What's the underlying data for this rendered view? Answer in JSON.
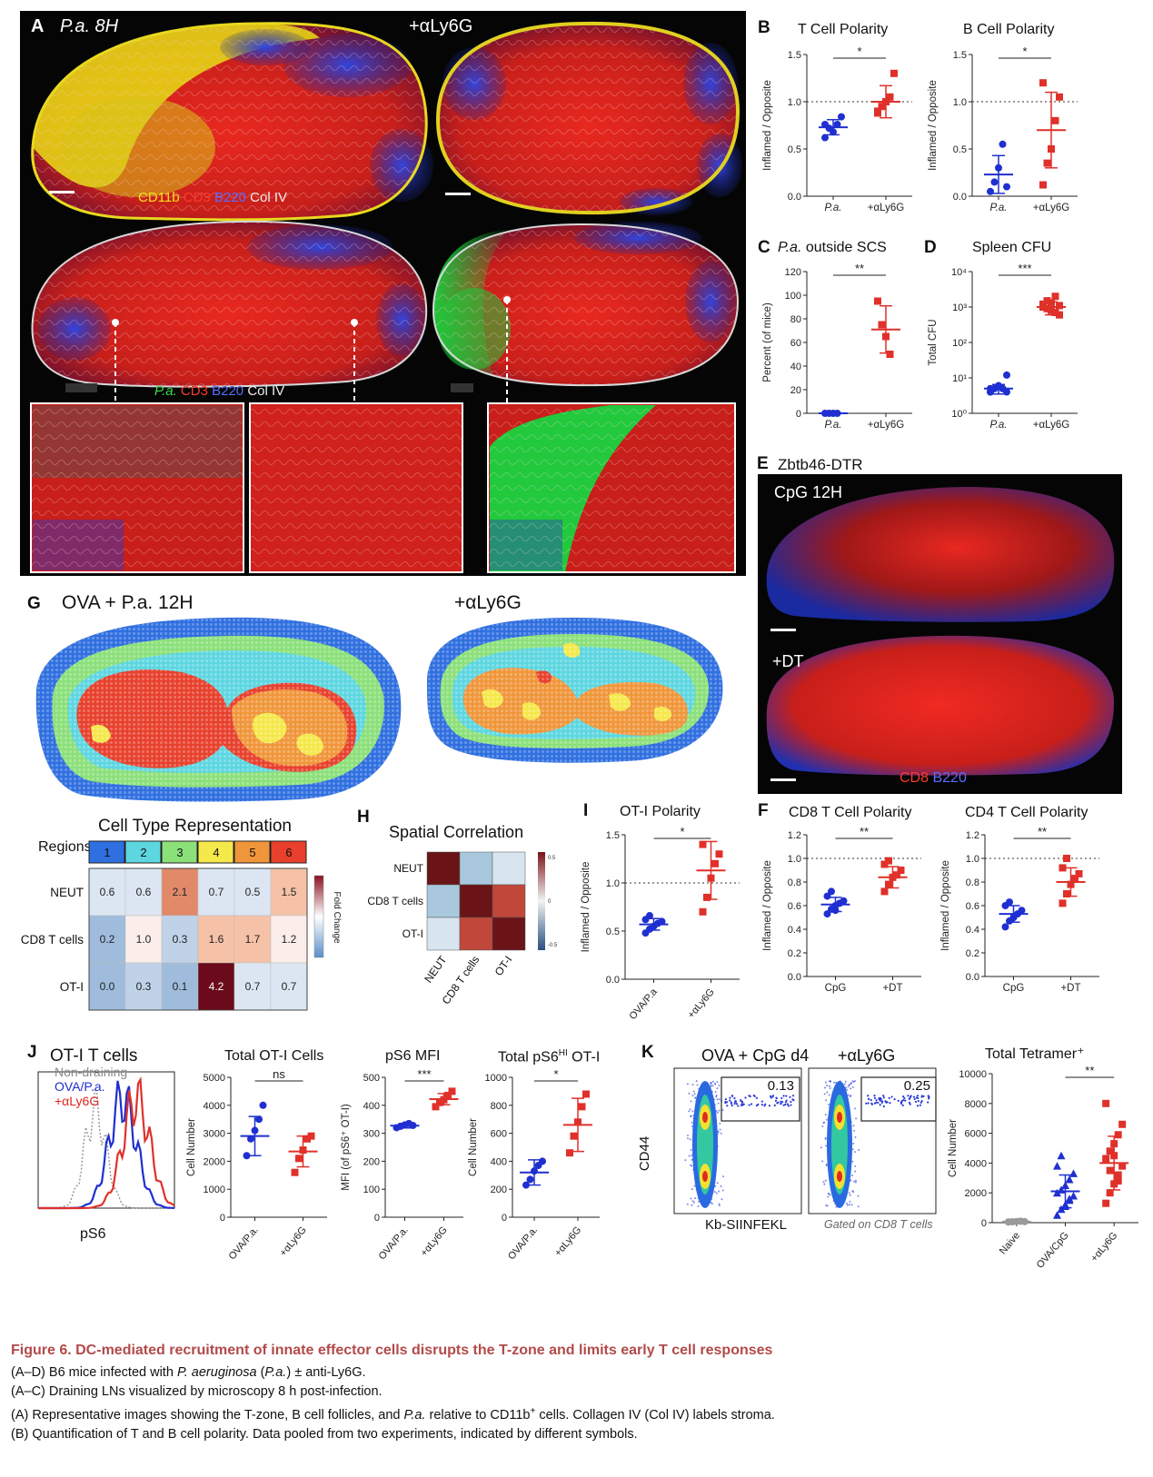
{
  "panel_letters": {
    "A": "A",
    "B": "B",
    "C": "C",
    "D": "D",
    "E": "E",
    "F": "F",
    "G": "G",
    "H": "H",
    "I": "I",
    "J": "J",
    "K": "K"
  },
  "panelA": {
    "title_left": "P.a. 8H",
    "title_right": "+αLy6G",
    "legend_top": [
      "CD11b",
      "CD3",
      "B220",
      "Col IV"
    ],
    "legend_bottom": [
      "P.a.",
      "CD3",
      "B220",
      "Col IV"
    ],
    "colors": {
      "yellow": "#f2e21a",
      "red": "#e0241f",
      "blue": "#2a38c8",
      "white": "#e8e8e8",
      "green": "#2ecc3a"
    }
  },
  "panelB_T": {
    "title": "T Cell Polarity",
    "ylabel": "Inflamed / Opposite",
    "sig": "*",
    "categories": [
      "P.a.",
      "+αLy6G"
    ]
  },
  "panelB_B": {
    "title": "B Cell Polarity",
    "ylabel": "Inflamed / Opposite",
    "sig": "*",
    "categories": [
      "P.a.",
      "+αLy6G"
    ]
  },
  "panelC": {
    "title_italic": "P.a.",
    "title_rest": " outside SCS",
    "ylabel": "Percent (of mice)",
    "sig": "**",
    "categories": [
      "P.a.",
      "+αLy6G"
    ]
  },
  "panelD": {
    "title": "Spleen CFU",
    "ylabel": "Total CFU",
    "sig": "***",
    "categories": [
      "P.a.",
      "+αLy6G"
    ]
  },
  "panelE": {
    "title": "Zbtb46-DTR",
    "label_top": "CpG 12H",
    "label_bottom": "+DT",
    "legend": [
      "CD8",
      "B220"
    ]
  },
  "panelF_CD8": {
    "title": "CD8 T Cell Polarity",
    "ylabel": "Inflamed / Opposite",
    "sig": "**",
    "categories": [
      "CpG",
      "+DT"
    ]
  },
  "panelF_CD4": {
    "title": "CD4 T Cell Polarity",
    "ylabel": "Inflamed / Opposite",
    "sig": "**",
    "categories": [
      "CpG",
      "+DT"
    ]
  },
  "panelG": {
    "title_left": "OVA + P.a. 12H",
    "title_right": "+αLy6G",
    "region_colors": [
      "#2f6fe0",
      "#5dd6e0",
      "#8be07a",
      "#f5e84a",
      "#f0963a",
      "#e8402c"
    ]
  },
  "heatmap": {
    "title": "Cell Type Representation",
    "regions_label": "Regions",
    "regions": [
      "1",
      "2",
      "3",
      "4",
      "5",
      "6"
    ],
    "rows": [
      {
        "name": "NEUT",
        "values": [
          0.6,
          0.6,
          2.1,
          0.7,
          0.5,
          1.5
        ]
      },
      {
        "name": "CD8 T cells",
        "values": [
          0.2,
          1.0,
          0.3,
          1.6,
          1.7,
          1.2
        ]
      },
      {
        "name": "OT-I",
        "values": [
          0.0,
          0.3,
          0.1,
          4.2,
          0.7,
          0.7
        ]
      }
    ],
    "colorbar_label": "Fold Change"
  },
  "panelH": {
    "title": "Spatial Correlation",
    "labels": [
      "NEUT",
      "CD8 T cells",
      "OT-I"
    ],
    "matrix": [
      [
        1,
        -0.3,
        -0.1
      ],
      [
        -0.3,
        1,
        0.6
      ],
      [
        -0.1,
        0.6,
        1
      ]
    ],
    "ticks": [
      "0.5",
      "0",
      "-0.5"
    ]
  },
  "panelI": {
    "title": "OT-I Polarity",
    "ylabel": "Inflamed / Opposite",
    "sig": "*",
    "categories": [
      "OVA/P.a",
      "+αLy6G"
    ]
  },
  "panelJ": {
    "title": "OT-I T cells",
    "legend": [
      "Non-draining",
      "OVA/P.a.",
      "+αLy6G"
    ],
    "xlabel": "pS6",
    "chart1": {
      "title": "Total OT-I Cells",
      "ylabel": "Cell Number",
      "sig": "ns",
      "categories": [
        "OVA/P.a.",
        "+αLy6G"
      ]
    },
    "chart2": {
      "title": "pS6 MFI",
      "ylabel": "MFI (of pS6⁺ OT-I)",
      "sig": "***",
      "categories": [
        "OVA/P.a.",
        "+αLy6G"
      ]
    },
    "chart3": {
      "title": "Total pS6HI OT-I",
      "ylabel": "Cell Number",
      "sig": "*",
      "categories": [
        "OVA/P.a.",
        "+αLy6G"
      ]
    }
  },
  "panelK": {
    "title_left": "OVA + CpG d4",
    "title_right": "+αLy6G",
    "ylabel": "CD44",
    "xlabel": "Kb-SIINFEKL",
    "gate_left": "0.13",
    "gate_right": "0.25",
    "note": "Gated on CD8 T cells",
    "chart": {
      "title": "Total Tetramer⁺",
      "ylabel": "Cell Number",
      "sig": "**",
      "categories": [
        "Naive",
        "OVA/CpG",
        "+αLy6G"
      ]
    }
  },
  "chart_data": [
    {
      "id": "B_T",
      "type": "scatter",
      "title": "T Cell Polarity",
      "ylabel": "Inflamed / Opposite",
      "categories": [
        "P.a.",
        "+αLy6G"
      ],
      "ylim": [
        0,
        1.5
      ],
      "yticks": [
        "0.0",
        "0.5",
        "1.0",
        "1.5"
      ],
      "refline": 1.0,
      "series": [
        {
          "name": "P.a.",
          "values": [
            0.62,
            0.72,
            0.68,
            0.76,
            0.84,
            0.76
          ],
          "mean": 0.73,
          "sd": 0.08
        },
        {
          "name": "+αLy6G",
          "values": [
            0.88,
            0.95,
            1.0,
            1.05,
            1.3,
            0.9
          ],
          "mean": 1.0,
          "sd": 0.17
        }
      ]
    },
    {
      "id": "B_B",
      "type": "scatter",
      "title": "B Cell Polarity",
      "ylabel": "Inflamed / Opposite",
      "categories": [
        "P.a.",
        "+αLy6G"
      ],
      "ylim": [
        0,
        1.5
      ],
      "yticks": [
        "0.0",
        "0.5",
        "1.0",
        "1.5"
      ],
      "refline": 1.0,
      "series": [
        {
          "name": "P.a.",
          "values": [
            0.05,
            0.15,
            0.3,
            0.55,
            0.1
          ],
          "mean": 0.23,
          "sd": 0.2
        },
        {
          "name": "+αLy6G",
          "values": [
            0.12,
            0.35,
            0.5,
            0.8,
            1.05,
            1.2
          ],
          "mean": 0.7,
          "sd": 0.4
        }
      ]
    },
    {
      "id": "C",
      "type": "scatter",
      "title": "P.a. outside SCS",
      "ylabel": "Percent (of mice)",
      "categories": [
        "P.a.",
        "+αLy6G"
      ],
      "ylim": [
        0,
        120
      ],
      "yticks": [
        "0",
        "20",
        "40",
        "60",
        "80",
        "100",
        "120"
      ],
      "series": [
        {
          "name": "P.a.",
          "values": [
            0,
            0,
            0,
            0
          ],
          "mean": 0,
          "sd": 0
        },
        {
          "name": "+αLy6G",
          "values": [
            95,
            75,
            65,
            50
          ],
          "mean": 71,
          "sd": 20
        }
      ]
    },
    {
      "id": "D",
      "type": "scatter",
      "title": "Spleen CFU",
      "ylabel": "Total CFU",
      "categories": [
        "P.a.",
        "+αLy6G"
      ],
      "scale": "log",
      "ylim": [
        1,
        10000
      ],
      "yticks": [
        "10⁰",
        "10¹",
        "10²",
        "10³",
        "10⁴"
      ],
      "series": [
        {
          "name": "P.a.",
          "values": [
            4,
            5,
            6,
            5,
            12,
            4,
            5,
            6,
            5,
            4,
            5
          ],
          "mean": 5,
          "sd": 1.5
        },
        {
          "name": "+αLy6G",
          "values": [
            1000,
            1500,
            800,
            2000,
            600,
            1200,
            900,
            1300,
            700,
            1100
          ],
          "mean": 1000,
          "sd": 400
        }
      ]
    },
    {
      "id": "F_CD8",
      "type": "scatter",
      "title": "CD8 T Cell Polarity",
      "ylabel": "Inflamed / Opposite",
      "categories": [
        "CpG",
        "+DT"
      ],
      "ylim": [
        0,
        1.2
      ],
      "yticks": [
        "0.0",
        "0.2",
        "0.4",
        "0.6",
        "0.8",
        "1.0",
        "1.2"
      ],
      "refline": 1.0,
      "series": [
        {
          "name": "CpG",
          "values": [
            0.53,
            0.57,
            0.6,
            0.62,
            0.64,
            0.68,
            0.72,
            0.56
          ],
          "mean": 0.61,
          "sd": 0.06
        },
        {
          "name": "+DT",
          "values": [
            0.72,
            0.78,
            0.84,
            0.86,
            0.9,
            0.95,
            0.98
          ],
          "mean": 0.84,
          "sd": 0.09
        }
      ]
    },
    {
      "id": "F_CD4",
      "type": "scatter",
      "title": "CD4 T Cell Polarity",
      "ylabel": "Inflamed / Opposite",
      "categories": [
        "CpG",
        "+DT"
      ],
      "ylim": [
        0,
        1.2
      ],
      "yticks": [
        "0.0",
        "0.2",
        "0.4",
        "0.6",
        "0.8",
        "1.0",
        "1.2"
      ],
      "refline": 1.0,
      "series": [
        {
          "name": "CpG",
          "values": [
            0.42,
            0.47,
            0.5,
            0.53,
            0.56,
            0.6,
            0.63,
            0.5
          ],
          "mean": 0.53,
          "sd": 0.07
        },
        {
          "name": "+DT",
          "values": [
            0.62,
            0.7,
            0.78,
            0.83,
            0.87,
            0.92,
            1.0
          ],
          "mean": 0.8,
          "sd": 0.12
        }
      ]
    },
    {
      "id": "I",
      "type": "scatter",
      "title": "OT-I Polarity",
      "ylabel": "Inflamed / Opposite",
      "categories": [
        "OVA/P.a",
        "+αLy6G"
      ],
      "ylim": [
        0,
        1.5
      ],
      "yticks": [
        "0.0",
        "0.5",
        "1.0",
        "1.5"
      ],
      "refline": 1.0,
      "series": [
        {
          "name": "OVA/P.a",
          "values": [
            0.48,
            0.52,
            0.55,
            0.58,
            0.6,
            0.62,
            0.66
          ],
          "mean": 0.57,
          "sd": 0.06
        },
        {
          "name": "+αLy6G",
          "values": [
            0.7,
            0.85,
            1.05,
            1.2,
            1.3,
            1.4
          ],
          "mean": 1.13,
          "sd": 0.3
        }
      ]
    },
    {
      "id": "J1",
      "type": "scatter",
      "title": "Total OT-I Cells",
      "ylabel": "Cell Number",
      "categories": [
        "OVA/P.a.",
        "+αLy6G"
      ],
      "ylim": [
        0,
        5000
      ],
      "yticks": [
        "0",
        "1000",
        "2000",
        "3000",
        "4000",
        "5000"
      ],
      "series": [
        {
          "name": "OVA/P.a.",
          "values": [
            2200,
            2800,
            3100,
            3500,
            4000
          ],
          "mean": 2900,
          "sd": 700
        },
        {
          "name": "+αLy6G",
          "values": [
            1600,
            2100,
            2400,
            2800,
            2900
          ],
          "mean": 2350,
          "sd": 550
        }
      ]
    },
    {
      "id": "J2",
      "type": "scatter",
      "title": "pS6 MFI",
      "ylabel": "MFI (of pS6⁺ OT-I)",
      "categories": [
        "OVA/P.a.",
        "+αLy6G"
      ],
      "ylim": [
        0,
        500
      ],
      "yticks": [
        "0",
        "100",
        "200",
        "300",
        "400",
        "500"
      ],
      "series": [
        {
          "name": "OVA/P.a.",
          "values": [
            320,
            325,
            330,
            335,
            328
          ],
          "mean": 327,
          "sd": 8
        },
        {
          "name": "+αLy6G",
          "values": [
            395,
            410,
            420,
            435,
            450
          ],
          "mean": 422,
          "sd": 20
        }
      ]
    },
    {
      "id": "J3",
      "type": "scatter",
      "title": "Total pS6HI OT-I",
      "ylabel": "Cell Number",
      "categories": [
        "OVA/P.a.",
        "+αLy6G"
      ],
      "ylim": [
        0,
        1000
      ],
      "yticks": [
        "0",
        "200",
        "400",
        "600",
        "800",
        "1000"
      ],
      "series": [
        {
          "name": "OVA/P.a.",
          "values": [
            230,
            270,
            330,
            370,
            400
          ],
          "mean": 320,
          "sd": 90
        },
        {
          "name": "+αLy6G",
          "values": [
            460,
            580,
            680,
            790,
            880
          ],
          "mean": 660,
          "sd": 190
        }
      ]
    },
    {
      "id": "K",
      "type": "scatter",
      "title": "Total Tetramer⁺",
      "ylabel": "Cell Number",
      "categories": [
        "Naive",
        "OVA/CpG",
        "+αLy6G"
      ],
      "ylim": [
        0,
        10000
      ],
      "yticks": [
        "0",
        "2000",
        "4000",
        "6000",
        "8000",
        "10000"
      ],
      "series": [
        {
          "name": "Naive",
          "values": [
            40,
            60,
            80,
            100,
            70,
            50
          ],
          "mean": 65,
          "sd": 20
        },
        {
          "name": "OVA/CpG",
          "values": [
            500,
            900,
            1200,
            1500,
            1800,
            2000,
            2200,
            2500,
            2900,
            3300,
            3800,
            4500,
            1100,
            1600
          ],
          "mean": 2100,
          "sd": 1100
        },
        {
          "name": "+αLy6G",
          "values": [
            1300,
            2000,
            2600,
            3200,
            3800,
            4300,
            4800,
            5300,
            5900,
            6600,
            8000,
            3500,
            4500,
            2800
          ],
          "mean": 4000,
          "sd": 1800
        }
      ]
    }
  ],
  "caption": {
    "title": "Figure 6.  DC-mediated recruitment of innate effector cells disrupts the T-zone and limits early T cell responses",
    "line1_a": "(A–D) B6 mice infected with ",
    "line1_i": "P. aeruginosa",
    "line1_b": " (",
    "line1_i2": "P.a.",
    "line1_c": ") ± anti-Ly6G.",
    "line2": "(A–C) Draining LNs visualized by microscopy 8 h post-infection.",
    "line3_a": "(A) Representative images showing the T-zone, B cell follicles, and ",
    "line3_i": "P.a.",
    "line3_b": " relative to CD11b",
    "line3_sup": "+",
    "line3_c": " cells. Collagen IV (Col IV) labels stroma.",
    "line4": "(B) Quantification of T and B cell polarity. Data pooled from two experiments, indicated by different symbols."
  }
}
